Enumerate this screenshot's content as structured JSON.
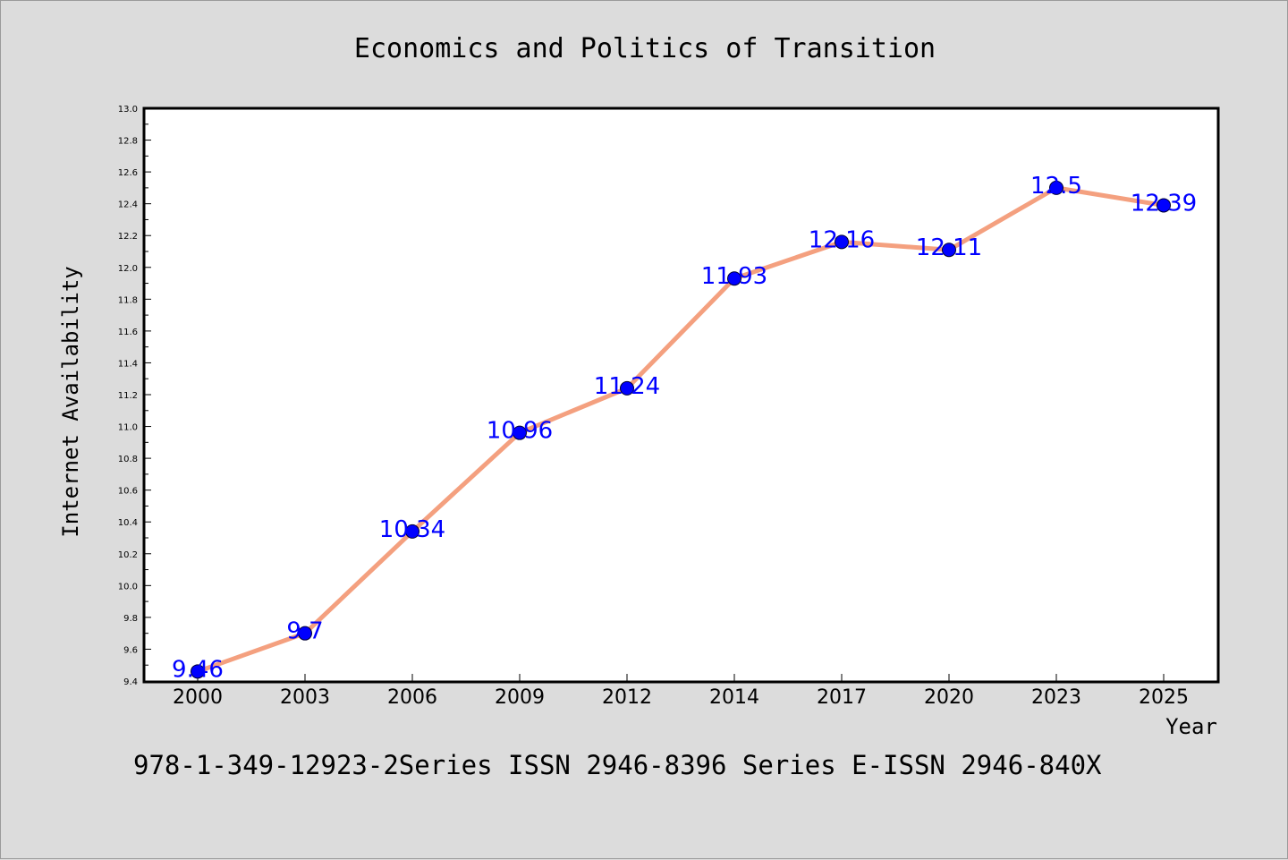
{
  "chart_data": {
    "type": "line",
    "title": "Economics and Politics of Transition",
    "xlabel": "Year",
    "ylabel": "Internet Availability",
    "categories": [
      "2000",
      "2003",
      "2006",
      "2009",
      "2012",
      "2014",
      "2017",
      "2020",
      "2023",
      "2025"
    ],
    "series": [
      {
        "values": [
          9.46,
          9.7,
          10.34,
          10.96,
          11.24,
          11.93,
          12.16,
          12.11,
          12.5,
          12.39
        ]
      }
    ],
    "data_labels": [
      "9.46",
      "9.7",
      "10.34",
      "10.96",
      "11.24",
      "11.93",
      "12.16",
      "12.11",
      "12.5",
      "12.39"
    ],
    "ylim": [
      9.4,
      13.0
    ],
    "yticks": [
      "9.4",
      "9.6",
      "9.8",
      "10.0",
      "10.2",
      "10.4",
      "10.6",
      "10.8",
      "11.0",
      "11.2",
      "11.4",
      "11.6",
      "11.8",
      "12.0",
      "12.2",
      "12.4",
      "12.6",
      "12.8",
      "13.0"
    ],
    "grid": false,
    "legend": "none",
    "colors": {
      "line": "#f4a07f",
      "marker": "#0000ff",
      "data_label": "#0000ff",
      "background": "#dcdcdc",
      "plot_background": "#ffffff"
    }
  },
  "footer": "978-1-349-12923-2Series ISSN 2946-8396 Series E-ISSN 2946-840X"
}
